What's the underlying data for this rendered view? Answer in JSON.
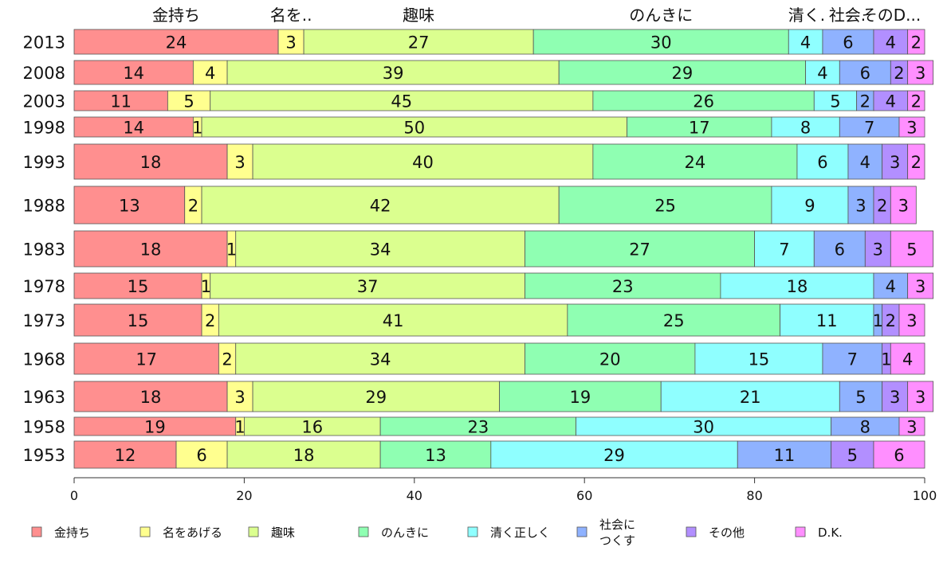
{
  "chart_data": {
    "type": "bar",
    "orientation": "horizontal",
    "stacked": true,
    "categories": [
      "2013",
      "2008",
      "2003",
      "1998",
      "1993",
      "1988",
      "1983",
      "1978",
      "1973",
      "1968",
      "1963",
      "1958",
      "1953"
    ],
    "series": [
      {
        "name": "金持ち",
        "color": "#ff8f8f",
        "values": [
          24,
          14,
          11,
          14,
          18,
          13,
          18,
          15,
          15,
          17,
          18,
          19,
          12
        ]
      },
      {
        "name": "名をあげる",
        "color": "#ffff8f",
        "values": [
          3,
          4,
          5,
          1,
          3,
          2,
          1,
          1,
          2,
          2,
          3,
          1,
          6
        ]
      },
      {
        "name": "趣味",
        "color": "#dbff8f",
        "values": [
          27,
          39,
          45,
          50,
          40,
          42,
          34,
          37,
          41,
          34,
          29,
          16,
          18
        ]
      },
      {
        "name": "のんきに",
        "color": "#8fffb2",
        "values": [
          30,
          29,
          26,
          17,
          24,
          25,
          27,
          23,
          25,
          20,
          19,
          23,
          13
        ]
      },
      {
        "name": "清く正しく",
        "color": "#8fffff",
        "values": [
          4,
          4,
          5,
          8,
          6,
          9,
          7,
          18,
          11,
          15,
          21,
          30,
          29
        ]
      },
      {
        "name": "社会につくす",
        "color": "#8fb2ff",
        "values": [
          6,
          6,
          2,
          7,
          4,
          3,
          6,
          4,
          1,
          7,
          5,
          8,
          11
        ]
      },
      {
        "name": "その他",
        "color": "#b28fff",
        "values": [
          4,
          2,
          4,
          0,
          3,
          2,
          3,
          0,
          2,
          1,
          3,
          0,
          5
        ]
      },
      {
        "name": "D.K.",
        "color": "#ff8fff",
        "values": [
          2,
          3,
          2,
          3,
          2,
          3,
          5,
          3,
          3,
          4,
          3,
          3,
          6
        ]
      }
    ],
    "top_labels": [
      "金持ち",
      "名を..",
      "趣味",
      "のんきに",
      "清く.",
      "社会.",
      "そのD..."
    ],
    "legend_labels": [
      [
        "金持ち"
      ],
      [
        "名をあげる"
      ],
      [
        "趣味"
      ],
      [
        "のんきに"
      ],
      [
        "清く正しく"
      ],
      [
        "社会に",
        "つくす"
      ],
      [
        "その他"
      ],
      [
        "D.K."
      ]
    ],
    "xlim": [
      0,
      100
    ],
    "xticks": [
      0,
      20,
      40,
      60,
      80,
      100
    ],
    "legend_position": "bottom",
    "grid": false
  }
}
